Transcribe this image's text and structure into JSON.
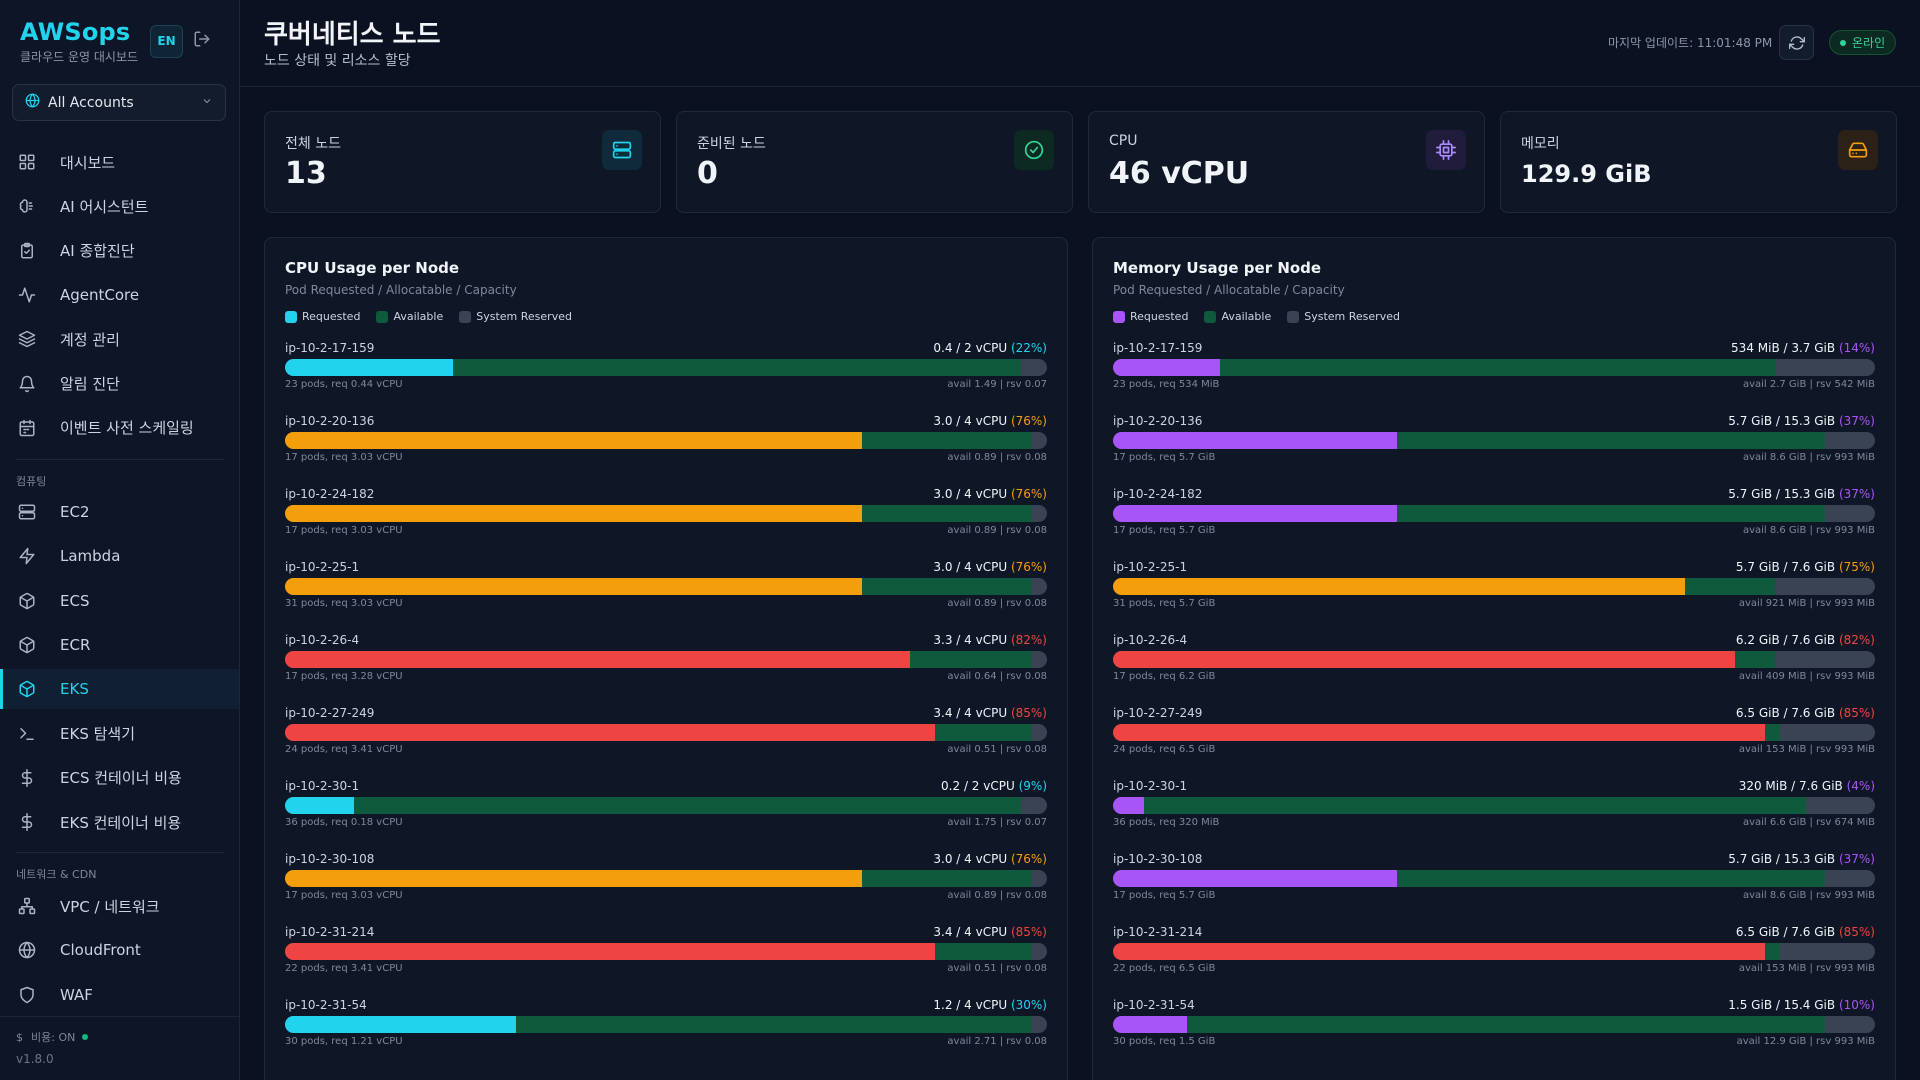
{
  "brand": {
    "name": "AWSops",
    "subtitle": "클라우드 운영 대시보드",
    "lang": "EN"
  },
  "account_select": {
    "label": "All Accounts"
  },
  "nav": {
    "items": [
      {
        "label": "대시보드",
        "icon": "dashboard-grid-icon"
      },
      {
        "label": "AI 어시스턴트",
        "icon": "brain-icon"
      },
      {
        "label": "AI 종합진단",
        "icon": "clipboard-check-icon"
      },
      {
        "label": "AgentCore",
        "icon": "activity-icon"
      },
      {
        "label": "계정 관리",
        "icon": "layers-icon"
      },
      {
        "label": "알림 진단",
        "icon": "bell-icon"
      },
      {
        "label": "이벤트 사전 스케일링",
        "icon": "calendar-icon"
      }
    ],
    "compute_section": "컴퓨팅",
    "compute_items": [
      {
        "label": "EC2",
        "icon": "server-icon"
      },
      {
        "label": "Lambda",
        "icon": "bolt-icon"
      },
      {
        "label": "ECS",
        "icon": "box-icon"
      },
      {
        "label": "ECR",
        "icon": "box-icon"
      },
      {
        "label": "EKS",
        "icon": "box-icon"
      },
      {
        "label": "EKS 탐색기",
        "icon": "terminal-icon"
      },
      {
        "label": "ECS 컨테이너 비용",
        "icon": "dollar-icon"
      },
      {
        "label": "EKS 컨테이너 비용",
        "icon": "dollar-icon"
      }
    ],
    "network_section": "네트워크 & CDN",
    "network_items": [
      {
        "label": "VPC / 네트워크",
        "icon": "network-icon"
      },
      {
        "label": "CloudFront",
        "icon": "globe-icon"
      },
      {
        "label": "WAF",
        "icon": "shield-icon"
      }
    ],
    "active": "EKS"
  },
  "footer": {
    "cost_label": "비용: ON",
    "version": "v1.8.0"
  },
  "header": {
    "title": "쿠버네티스 노드",
    "subtitle": "노드 상태 및 리소스 할당",
    "last_update": "마지막 업데이트: 11:01:48 PM",
    "status": "온라인"
  },
  "stats": [
    {
      "label": "전체 노드",
      "value": "13",
      "icon": "server-icon",
      "color": "#22d3ee",
      "bg": "#0f2a3a"
    },
    {
      "label": "준비된 노드",
      "value": "0",
      "icon": "check-circle-icon",
      "color": "#34d399",
      "bg": "#0c2a22"
    },
    {
      "label": "CPU",
      "value": "46 vCPU",
      "icon": "cpu-icon",
      "color": "#a78bfa",
      "bg": "#221c3c"
    },
    {
      "label": "메모리",
      "value": "129.9 GiB",
      "icon": "hard-drive-icon",
      "color": "#f59e0b",
      "bg": "#2b2116"
    }
  ],
  "colors": {
    "requested_cpu": "#22d3ee",
    "requested_mem": "#a855f7",
    "warning": "#f59e0b",
    "danger": "#ef4444",
    "available": "#0f5a3c",
    "reserved": "#3a4353"
  },
  "cpu_panel": {
    "title": "CPU Usage per Node",
    "subtitle": "Pod Requested / Allocatable / Capacity",
    "legend": [
      "Requested",
      "Available",
      "System Reserved"
    ],
    "nodes": [
      {
        "name": "ip-10-2-17-159",
        "usage": "0.4 / 2 vCPU",
        "pct": "(22%)",
        "pods": "23 pods, req 0.44 vCPU",
        "avail": "avail 1.49 | rsv 0.07",
        "requested": 0.44,
        "available": 1.49,
        "reserved": 0.07,
        "capacity": 2,
        "level": "normal"
      },
      {
        "name": "ip-10-2-20-136",
        "usage": "3.0 / 4 vCPU",
        "pct": "(76%)",
        "pods": "17 pods, req 3.03 vCPU",
        "avail": "avail 0.89 | rsv 0.08",
        "requested": 3.03,
        "available": 0.89,
        "reserved": 0.08,
        "capacity": 4,
        "level": "warning"
      },
      {
        "name": "ip-10-2-24-182",
        "usage": "3.0 / 4 vCPU",
        "pct": "(76%)",
        "pods": "17 pods, req 3.03 vCPU",
        "avail": "avail 0.89 | rsv 0.08",
        "requested": 3.03,
        "available": 0.89,
        "reserved": 0.08,
        "capacity": 4,
        "level": "warning"
      },
      {
        "name": "ip-10-2-25-1",
        "usage": "3.0 / 4 vCPU",
        "pct": "(76%)",
        "pods": "31 pods, req 3.03 vCPU",
        "avail": "avail 0.89 | rsv 0.08",
        "requested": 3.03,
        "available": 0.89,
        "reserved": 0.08,
        "capacity": 4,
        "level": "warning"
      },
      {
        "name": "ip-10-2-26-4",
        "usage": "3.3 / 4 vCPU",
        "pct": "(82%)",
        "pods": "17 pods, req 3.28 vCPU",
        "avail": "avail 0.64 | rsv 0.08",
        "requested": 3.28,
        "available": 0.64,
        "reserved": 0.08,
        "capacity": 4,
        "level": "danger"
      },
      {
        "name": "ip-10-2-27-249",
        "usage": "3.4 / 4 vCPU",
        "pct": "(85%)",
        "pods": "24 pods, req 3.41 vCPU",
        "avail": "avail 0.51 | rsv 0.08",
        "requested": 3.41,
        "available": 0.51,
        "reserved": 0.08,
        "capacity": 4,
        "level": "danger"
      },
      {
        "name": "ip-10-2-30-1",
        "usage": "0.2 / 2 vCPU",
        "pct": "(9%)",
        "pods": "36 pods, req 0.18 vCPU",
        "avail": "avail 1.75 | rsv 0.07",
        "requested": 0.18,
        "available": 1.75,
        "reserved": 0.07,
        "capacity": 2,
        "level": "normal"
      },
      {
        "name": "ip-10-2-30-108",
        "usage": "3.0 / 4 vCPU",
        "pct": "(76%)",
        "pods": "17 pods, req 3.03 vCPU",
        "avail": "avail 0.89 | rsv 0.08",
        "requested": 3.03,
        "available": 0.89,
        "reserved": 0.08,
        "capacity": 4,
        "level": "warning"
      },
      {
        "name": "ip-10-2-31-214",
        "usage": "3.4 / 4 vCPU",
        "pct": "(85%)",
        "pods": "22 pods, req 3.41 vCPU",
        "avail": "avail 0.51 | rsv 0.08",
        "requested": 3.41,
        "available": 0.51,
        "reserved": 0.08,
        "capacity": 4,
        "level": "danger"
      },
      {
        "name": "ip-10-2-31-54",
        "usage": "1.2 / 4 vCPU",
        "pct": "(30%)",
        "pods": "30 pods, req 1.21 vCPU",
        "avail": "avail 2.71 | rsv 0.08",
        "requested": 1.21,
        "available": 2.71,
        "reserved": 0.08,
        "capacity": 4,
        "level": "normal"
      }
    ]
  },
  "mem_panel": {
    "title": "Memory Usage per Node",
    "subtitle": "Pod Requested / Allocatable / Capacity",
    "legend": [
      "Requested",
      "Available",
      "System Reserved"
    ],
    "nodes": [
      {
        "name": "ip-10-2-17-159",
        "usage": "534 MiB / 3.7 GiB",
        "pct": "(14%)",
        "pods": "23 pods, req 534 MiB",
        "avail": "avail 2.7 GiB | rsv 542 MiB",
        "requested": 0.52,
        "available": 2.7,
        "reserved": 0.53,
        "capacity": 3.7,
        "level": "normal"
      },
      {
        "name": "ip-10-2-20-136",
        "usage": "5.7 GiB / 15.3 GiB",
        "pct": "(37%)",
        "pods": "17 pods, req 5.7 GiB",
        "avail": "avail 8.6 GiB | rsv 993 MiB",
        "requested": 5.7,
        "available": 8.6,
        "reserved": 0.97,
        "capacity": 15.3,
        "level": "normal"
      },
      {
        "name": "ip-10-2-24-182",
        "usage": "5.7 GiB / 15.3 GiB",
        "pct": "(37%)",
        "pods": "17 pods, req 5.7 GiB",
        "avail": "avail 8.6 GiB | rsv 993 MiB",
        "requested": 5.7,
        "available": 8.6,
        "reserved": 0.97,
        "capacity": 15.3,
        "level": "normal"
      },
      {
        "name": "ip-10-2-25-1",
        "usage": "5.7 GiB / 7.6 GiB",
        "pct": "(75%)",
        "pods": "31 pods, req 5.7 GiB",
        "avail": "avail 921 MiB | rsv 993 MiB",
        "requested": 5.7,
        "available": 0.9,
        "reserved": 0.97,
        "capacity": 7.6,
        "level": "warning"
      },
      {
        "name": "ip-10-2-26-4",
        "usage": "6.2 GiB / 7.6 GiB",
        "pct": "(82%)",
        "pods": "17 pods, req 6.2 GiB",
        "avail": "avail 409 MiB | rsv 993 MiB",
        "requested": 6.2,
        "available": 0.4,
        "reserved": 0.97,
        "capacity": 7.6,
        "level": "danger"
      },
      {
        "name": "ip-10-2-27-249",
        "usage": "6.5 GiB / 7.6 GiB",
        "pct": "(85%)",
        "pods": "24 pods, req 6.5 GiB",
        "avail": "avail 153 MiB | rsv 993 MiB",
        "requested": 6.5,
        "available": 0.15,
        "reserved": 0.97,
        "capacity": 7.6,
        "level": "danger"
      },
      {
        "name": "ip-10-2-30-1",
        "usage": "320 MiB / 7.6 GiB",
        "pct": "(4%)",
        "pods": "36 pods, req 320 MiB",
        "avail": "avail 6.6 GiB | rsv 674 MiB",
        "requested": 0.31,
        "available": 6.6,
        "reserved": 0.66,
        "capacity": 7.6,
        "level": "normal"
      },
      {
        "name": "ip-10-2-30-108",
        "usage": "5.7 GiB / 15.3 GiB",
        "pct": "(37%)",
        "pods": "17 pods, req 5.7 GiB",
        "avail": "avail 8.6 GiB | rsv 993 MiB",
        "requested": 5.7,
        "available": 8.6,
        "reserved": 0.97,
        "capacity": 15.3,
        "level": "normal"
      },
      {
        "name": "ip-10-2-31-214",
        "usage": "6.5 GiB / 7.6 GiB",
        "pct": "(85%)",
        "pods": "22 pods, req 6.5 GiB",
        "avail": "avail 153 MiB | rsv 993 MiB",
        "requested": 6.5,
        "available": 0.15,
        "reserved": 0.97,
        "capacity": 7.6,
        "level": "danger"
      },
      {
        "name": "ip-10-2-31-54",
        "usage": "1.5 GiB / 15.4 GiB",
        "pct": "(10%)",
        "pods": "30 pods, req 1.5 GiB",
        "avail": "avail 12.9 GiB | rsv 993 MiB",
        "requested": 1.5,
        "available": 12.9,
        "reserved": 0.97,
        "capacity": 15.4,
        "level": "normal"
      }
    ]
  }
}
